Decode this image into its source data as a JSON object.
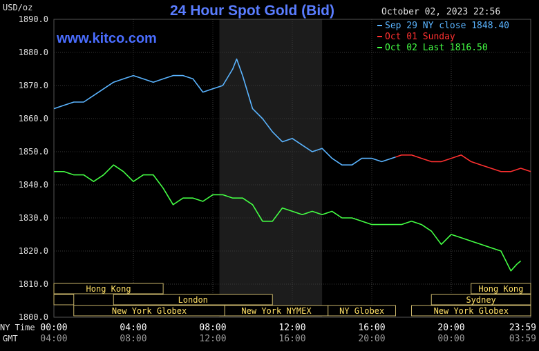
{
  "chart_data": {
    "type": "line",
    "title": "24 Hour Spot Gold (Bid)",
    "ylabel": "USD/oz",
    "timestamp": "October 02, 2023 22:56",
    "watermark": "www.kitco.com",
    "ylim": [
      1800,
      1890
    ],
    "y_ticks": [
      "1890.0",
      "1880.0",
      "1870.0",
      "1860.0",
      "1850.0",
      "1840.0",
      "1830.0",
      "1820.0",
      "1810.0",
      "1800.0"
    ],
    "x_label_ny": "NY Time",
    "x_label_gmt": "GMT",
    "x_ticks_ny": [
      "00:00",
      "04:00",
      "08:00",
      "12:00",
      "16:00",
      "20:00",
      "23:59"
    ],
    "x_ticks_gmt": [
      "04:00",
      "08:00",
      "12:00",
      "16:00",
      "20:00",
      "00:00",
      "03:59"
    ],
    "legend": [
      {
        "label": "Sep 29 NY close 1848.40",
        "color": "#5ab4ff"
      },
      {
        "label": "Oct 01 Sunday",
        "color": "#ff3030"
      },
      {
        "label": "Oct 02 Last 1816.50",
        "color": "#44ff44"
      }
    ],
    "sessions": [
      {
        "label": "Hong Kong",
        "start": 0.0,
        "end": 5.5,
        "row": 0
      },
      {
        "label": "",
        "start": 0.0,
        "end": 1.0,
        "row": 1
      },
      {
        "label": "London",
        "start": 3.0,
        "end": 11.0,
        "row": 1
      },
      {
        "label": "New York Globex",
        "start": 1.0,
        "end": 8.6,
        "row": 2
      },
      {
        "label": "New York NYMEX",
        "start": 8.6,
        "end": 13.8,
        "row": 2
      },
      {
        "label": "NY Globex",
        "start": 13.8,
        "end": 17.2,
        "row": 2
      },
      {
        "label": "Hong Kong",
        "start": 21.0,
        "end": 24.0,
        "row": 0
      },
      {
        "label": "Sydney",
        "start": 19.0,
        "end": 24.0,
        "row": 1
      },
      {
        "label": "New York Globex",
        "start": 18.0,
        "end": 24.0,
        "row": 2
      }
    ],
    "series": [
      {
        "name": "Sep 29 NY close 1848.40",
        "color": "#5ab4ff",
        "x": [
          0.0,
          0.5,
          1.0,
          1.5,
          2.0,
          2.5,
          3.0,
          3.5,
          4.0,
          4.5,
          5.0,
          5.5,
          6.0,
          6.5,
          7.0,
          7.5,
          8.0,
          8.5,
          9.0,
          9.2,
          9.5,
          10.0,
          10.5,
          11.0,
          11.5,
          12.0,
          12.5,
          13.0,
          13.5,
          14.0,
          14.5,
          15.0,
          15.5,
          16.0,
          16.5,
          17.0,
          17.2
        ],
        "values": [
          1863,
          1864,
          1865,
          1865,
          1867,
          1869,
          1871,
          1872,
          1873,
          1872,
          1871,
          1872,
          1873,
          1873,
          1872,
          1868,
          1869,
          1870,
          1875,
          1878,
          1873,
          1863,
          1860,
          1856,
          1853,
          1854,
          1852,
          1850,
          1851,
          1848,
          1846,
          1846,
          1848,
          1848,
          1847,
          1848,
          1848.4
        ]
      },
      {
        "name": "Oct 01 Sunday",
        "color": "#ff3030",
        "x": [
          17.2,
          17.5,
          18.0,
          18.5,
          19.0,
          19.5,
          20.0,
          20.5,
          21.0,
          21.5,
          22.0,
          22.5,
          23.0,
          23.5,
          24.0
        ],
        "values": [
          1848.4,
          1849,
          1849,
          1848,
          1847,
          1847,
          1848,
          1849,
          1847,
          1846,
          1845,
          1844,
          1844,
          1845,
          1844
        ]
      },
      {
        "name": "Oct 02 Last 1816.50",
        "color": "#44ff44",
        "x": [
          0.0,
          0.5,
          1.0,
          1.5,
          2.0,
          2.5,
          3.0,
          3.5,
          4.0,
          4.5,
          5.0,
          5.5,
          6.0,
          6.5,
          7.0,
          7.5,
          8.0,
          8.5,
          9.0,
          9.5,
          10.0,
          10.5,
          11.0,
          11.5,
          12.0,
          12.5,
          13.0,
          13.5,
          14.0,
          14.5,
          15.0,
          15.5,
          16.0,
          16.5,
          17.0,
          17.5,
          18.0,
          18.5,
          19.0,
          19.5,
          20.0,
          20.5,
          21.0,
          21.5,
          22.0,
          22.5,
          23.0,
          23.3,
          23.5
        ],
        "values": [
          1844,
          1844,
          1843,
          1843,
          1841,
          1843,
          1846,
          1844,
          1841,
          1843,
          1843,
          1839,
          1834,
          1836,
          1836,
          1835,
          1837,
          1837,
          1836,
          1836,
          1834,
          1829,
          1829,
          1833,
          1832,
          1831,
          1832,
          1831,
          1832,
          1830,
          1830,
          1829,
          1828,
          1828,
          1828,
          1828,
          1829,
          1828,
          1826,
          1822,
          1825,
          1824,
          1823,
          1822,
          1821,
          1820,
          1814,
          1816,
          1817
        ]
      }
    ]
  }
}
